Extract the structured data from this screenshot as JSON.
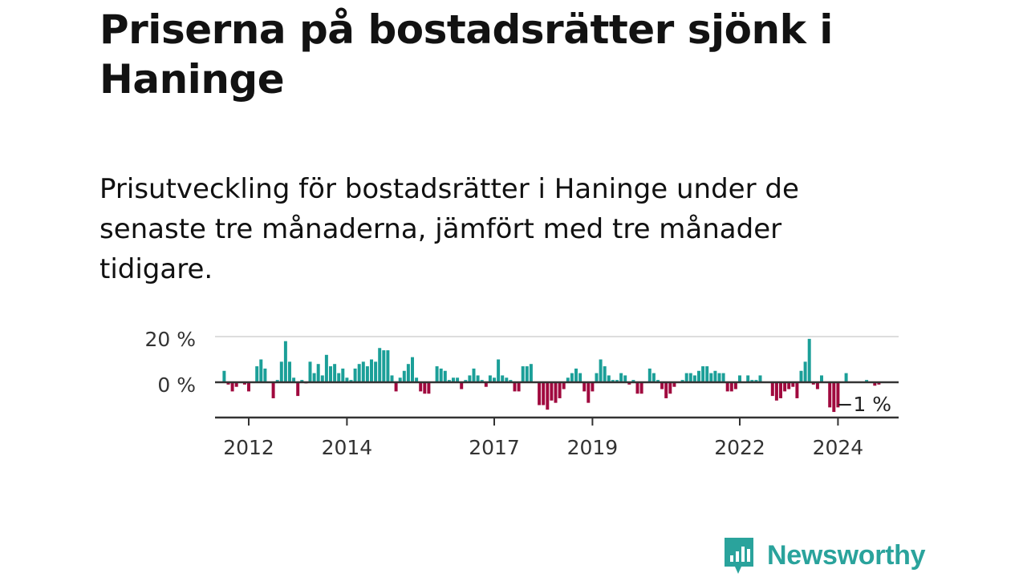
{
  "header": {
    "title": "Priserna på bostadsrätter sjönk i Haninge",
    "subtitle": "Prisutveckling för bostadsrätter i Haninge under de senaste tre månaderna, jämfört med tre månader tidigare."
  },
  "brand": {
    "name": "Newsworthy",
    "icon": "newsworthy-logo-icon"
  },
  "colors": {
    "positive": "#1b9f98",
    "negative": "#a0093e",
    "axis": "#333333",
    "grid": "#dddddd",
    "brand": "#2aa39c"
  },
  "chart_data": {
    "type": "bar",
    "title": "Priserna på bostadsrätter sjönk i Haninge",
    "xlabel": "",
    "ylabel": "",
    "ylim": [
      -15,
      22
    ],
    "y_ticks": [
      {
        "value": 20,
        "label": "20 %"
      },
      {
        "value": 0,
        "label": "0 %"
      }
    ],
    "x_ticks": [
      {
        "value": 2012,
        "label": "2012"
      },
      {
        "value": 2014,
        "label": "2014"
      },
      {
        "value": 2017,
        "label": "2017"
      },
      {
        "value": 2019,
        "label": "2019"
      },
      {
        "value": 2022,
        "label": "2022"
      },
      {
        "value": 2024,
        "label": "2024"
      }
    ],
    "x_start": 2011.5,
    "x_step": 0.0833333,
    "unit": "%",
    "annotation": {
      "label": "−1 %",
      "value": -1
    },
    "values": [
      5,
      -1,
      -4,
      -2,
      0,
      -1,
      -4,
      0,
      7,
      10,
      6,
      0,
      -7,
      1,
      9,
      18,
      9,
      2,
      -6,
      1,
      -0.5,
      9,
      4,
      8,
      3,
      12,
      7,
      8,
      4,
      6,
      2,
      1,
      6,
      8,
      9,
      7,
      10,
      9,
      15,
      14,
      14,
      3,
      -4,
      2,
      5,
      8,
      11,
      2,
      -4,
      -5,
      -5,
      0,
      7,
      6,
      5,
      1,
      2,
      2,
      -3,
      1,
      3,
      6,
      3,
      1,
      -2,
      3,
      2,
      10,
      3,
      2,
      1,
      -4,
      -4,
      7,
      7,
      8,
      0,
      -10,
      -10,
      -12,
      -8,
      -9,
      -7,
      -3,
      2,
      4,
      6,
      4,
      -4,
      -9,
      -4,
      4,
      10,
      7,
      3,
      1,
      1,
      4,
      3,
      -1,
      1,
      -5,
      -5,
      0,
      6,
      4,
      1,
      -3,
      -7,
      -5,
      -2,
      0,
      1,
      4,
      4,
      3,
      5,
      7,
      7,
      4,
      5,
      4,
      4,
      -4,
      -4,
      -3,
      3,
      0,
      3,
      1,
      1,
      3,
      0,
      0,
      -6,
      -8,
      -7,
      -4,
      -3,
      -2,
      -7,
      5,
      9,
      19,
      -1,
      -3,
      3,
      0,
      -11,
      -13,
      -11,
      0,
      4,
      0,
      0,
      0,
      0,
      1,
      0,
      -1.5,
      -1
    ]
  }
}
